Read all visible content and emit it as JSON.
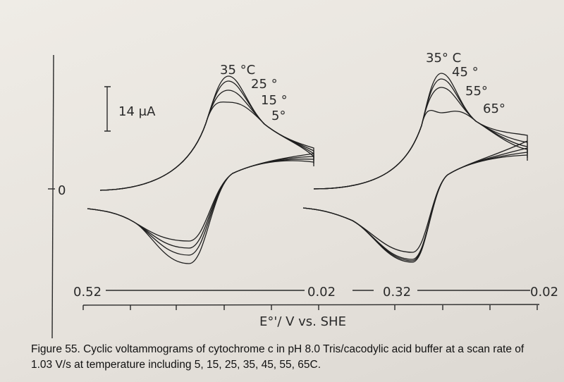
{
  "zero_label": "0",
  "left_panel": {
    "temperature_labels": [
      "35 °C",
      "25 °",
      "15 °",
      "5°"
    ],
    "scale_bar": "14 μA",
    "x_start": "0.52",
    "x_end": "0.02"
  },
  "right_panel": {
    "temperature_labels": [
      "35° C",
      "45 °",
      "55°",
      "65°"
    ],
    "x_start": "0.32",
    "x_end": "0.02"
  },
  "x_axis_label": "E°'/ V vs. SHE",
  "caption": "Figure 55. Cyclic voltammograms of cytochrome c in pH 8.0 Tris/cacodylic acid buffer at a scan rate of 1.03 V/s at temperature including 5, 15, 25, 35, 45, 55, 65C."
}
